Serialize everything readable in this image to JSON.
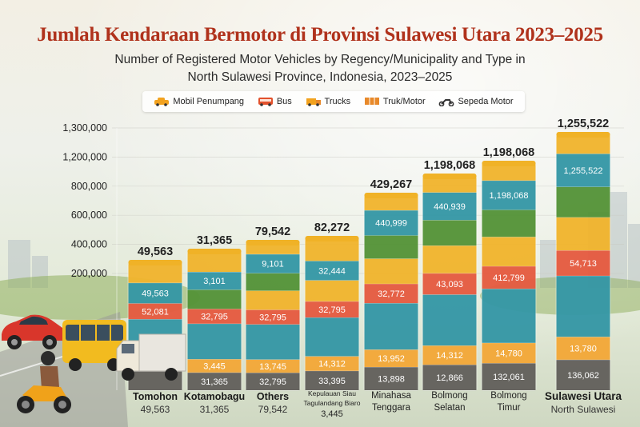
{
  "title": "Jumlah Kendaraan Bermotor di Provinsi Sulawesi Utara 2023–2025",
  "subtitle_line1": "Number of Registered Motor Vehicles by Regency/Municipality and Type in",
  "subtitle_line2": "North Sulawesi Province, Indonesia, 2023–2025",
  "legend": [
    {
      "label": "Mobil Penumpang",
      "icon": "car-icon",
      "color": "#f2a21e"
    },
    {
      "label": "Bus",
      "icon": "bus-icon",
      "color": "#e2512c"
    },
    {
      "label": "Trucks",
      "icon": "truck-icon",
      "color": "#f2a21e"
    },
    {
      "label": "Truk/Motor",
      "icon": "truck-icon",
      "color": "#e8892a"
    },
    {
      "label": "Sepeda Motor",
      "icon": "motorcycle-icon",
      "color": "#333333"
    }
  ],
  "chart_data": {
    "type": "bar",
    "stacked": true,
    "yticks": [
      "200,000",
      "400,000",
      "600,000",
      "800,000",
      "1,200,000",
      "1,300,000"
    ],
    "colors": {
      "dark": "#5e5a56",
      "orange": "#f2a531",
      "teal": "#2e93a3",
      "red": "#e4553a",
      "green": "#4f8f32",
      "yellow": "#f0b227"
    },
    "categories": [
      {
        "name": "Tomohon",
        "sub": "49,563",
        "total": "49,563",
        "segments": [
          {
            "color": "dark",
            "label": ""
          },
          {
            "color": "orange",
            "label": ""
          },
          {
            "color": "teal",
            "label": ""
          },
          {
            "color": "red",
            "label": "52,081"
          },
          {
            "color": "teal",
            "label": "49,563"
          },
          {
            "color": "yellow",
            "label": ""
          }
        ]
      },
      {
        "name": "Kotamobagu",
        "sub": "31,365",
        "total": "31,365",
        "segments": [
          {
            "color": "dark",
            "label": "31,365"
          },
          {
            "color": "orange",
            "label": "3,445"
          },
          {
            "color": "teal",
            "label": ""
          },
          {
            "color": "red",
            "label": "32,795"
          },
          {
            "color": "green",
            "label": ""
          },
          {
            "color": "teal",
            "label": "3,101"
          },
          {
            "color": "yellow",
            "label": ""
          }
        ]
      },
      {
        "name": "Others",
        "sub": "79,542",
        "total": "79,542",
        "segments": [
          {
            "color": "dark",
            "label": "32,795"
          },
          {
            "color": "orange",
            "label": "13,745"
          },
          {
            "color": "teal",
            "label": ""
          },
          {
            "color": "red",
            "label": "32,795"
          },
          {
            "color": "yellow",
            "label": ""
          },
          {
            "color": "green",
            "label": ""
          },
          {
            "color": "teal",
            "label": "9,101"
          },
          {
            "color": "yellow",
            "label": ""
          }
        ]
      },
      {
        "name": "Kepulauan Siau Tagulandang Biaro",
        "sub": "3,445",
        "total": "82,272",
        "segments": [
          {
            "color": "dark",
            "label": "33,395"
          },
          {
            "color": "orange",
            "label": "14,312"
          },
          {
            "color": "teal",
            "label": ""
          },
          {
            "color": "red",
            "label": "32,795"
          },
          {
            "color": "yellow",
            "label": ""
          },
          {
            "color": "teal",
            "label": "32,444"
          },
          {
            "color": "yellow",
            "label": ""
          }
        ]
      },
      {
        "name": "Minahasa Tenggara",
        "sub": "",
        "total": "429,267",
        "segments": [
          {
            "color": "dark",
            "label": "13,898"
          },
          {
            "color": "orange",
            "label": "13,952"
          },
          {
            "color": "teal",
            "label": ""
          },
          {
            "color": "red",
            "label": "32,772"
          },
          {
            "color": "yellow",
            "label": ""
          },
          {
            "color": "green",
            "label": ""
          },
          {
            "color": "teal",
            "label": "440,999"
          },
          {
            "color": "yellow",
            "label": ""
          }
        ]
      },
      {
        "name": "Bolmong Selatan",
        "sub": "",
        "total": "1,198,068",
        "segments": [
          {
            "color": "dark",
            "label": "12,866"
          },
          {
            "color": "orange",
            "label": "14,312"
          },
          {
            "color": "teal",
            "label": ""
          },
          {
            "color": "red",
            "label": "43,093"
          },
          {
            "color": "yellow",
            "label": ""
          },
          {
            "color": "green",
            "label": ""
          },
          {
            "color": "teal",
            "label": "440,939"
          },
          {
            "color": "yellow",
            "label": ""
          }
        ]
      },
      {
        "name": "Bolmong Timur",
        "sub": "",
        "total": "1,198,068",
        "segments": [
          {
            "color": "dark",
            "label": "132,061"
          },
          {
            "color": "orange",
            "label": "14,780"
          },
          {
            "color": "teal",
            "label": ""
          },
          {
            "color": "red",
            "label": "412,799"
          },
          {
            "color": "yellow",
            "label": ""
          },
          {
            "color": "green",
            "label": ""
          },
          {
            "color": "teal",
            "label": "1,198,068"
          },
          {
            "color": "yellow",
            "label": ""
          }
        ]
      },
      {
        "name": "Sulawesi Utara",
        "sub": "North Sulawesi",
        "total": "1,255,522",
        "segments": [
          {
            "color": "dark",
            "label": "136,062"
          },
          {
            "color": "orange",
            "label": "13,780"
          },
          {
            "color": "teal",
            "label": ""
          },
          {
            "color": "red",
            "label": "54,713"
          },
          {
            "color": "yellow",
            "label": ""
          },
          {
            "color": "green",
            "label": ""
          },
          {
            "color": "teal",
            "label": "1,255,522"
          },
          {
            "color": "yellow",
            "label": ""
          }
        ]
      }
    ]
  }
}
